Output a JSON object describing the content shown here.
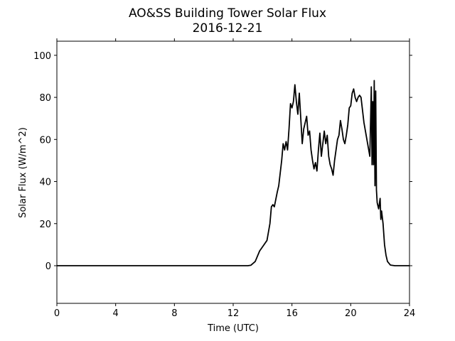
{
  "chart_data": {
    "type": "line",
    "title": "AO&SS Building Tower Solar Flux",
    "subtitle": "2016-12-21",
    "xlabel": "Time (UTC)",
    "ylabel": "Solar Flux (W/m^2)",
    "color": "#000000",
    "xlim": [
      0,
      24
    ],
    "xticks": [
      0,
      4,
      8,
      12,
      16,
      20,
      24
    ],
    "ylim": [
      -17.9,
      106.7
    ],
    "yticks": [
      0,
      20,
      40,
      60,
      80,
      100
    ],
    "x": [
      0,
      13,
      13.2,
      13.5,
      13.8,
      14,
      14.3,
      14.5,
      14.6,
      14.7,
      14.8,
      15,
      15.1,
      15.3,
      15.4,
      15.5,
      15.6,
      15.7,
      15.8,
      15.9,
      16,
      16.1,
      16.2,
      16.3,
      16.4,
      16.5,
      16.6,
      16.7,
      16.8,
      16.9,
      17,
      17.1,
      17.2,
      17.3,
      17.4,
      17.5,
      17.6,
      17.7,
      17.8,
      17.9,
      18,
      18.1,
      18.2,
      18.3,
      18.4,
      18.5,
      18.6,
      18.7,
      18.8,
      18.9,
      19,
      19.1,
      19.2,
      19.3,
      19.4,
      19.5,
      19.6,
      19.7,
      19.8,
      19.9,
      20,
      20.1,
      20.2,
      20.3,
      20.4,
      20.5,
      20.6,
      20.7,
      20.8,
      20.9,
      21,
      21.1,
      21.2,
      21.3,
      21.4,
      21.45,
      21.5,
      21.55,
      21.6,
      21.65,
      21.7,
      21.75,
      21.8,
      21.9,
      22,
      22.05,
      22.1,
      22.2,
      22.3,
      22.4,
      22.5,
      22.7,
      23,
      24
    ],
    "values": [
      0,
      0,
      0.2,
      2,
      7,
      9,
      12,
      20,
      28,
      29,
      28,
      35,
      38,
      50,
      58,
      55,
      59,
      55,
      65,
      77,
      75,
      78,
      86,
      78,
      72,
      82,
      70,
      58,
      65,
      68,
      71,
      62,
      64,
      55,
      50,
      46,
      49,
      45,
      55,
      63,
      52,
      58,
      64,
      58,
      62,
      52,
      48,
      46,
      43,
      50,
      55,
      60,
      62,
      69,
      65,
      60,
      58,
      62,
      67,
      75,
      76,
      82,
      84,
      80,
      78,
      80,
      81,
      80,
      74,
      68,
      64,
      60,
      56,
      52,
      85,
      48,
      78,
      48,
      88,
      38,
      83,
      36,
      30,
      27,
      32,
      22,
      26,
      20,
      10,
      5,
      2,
      0.3,
      0,
      0
    ]
  }
}
